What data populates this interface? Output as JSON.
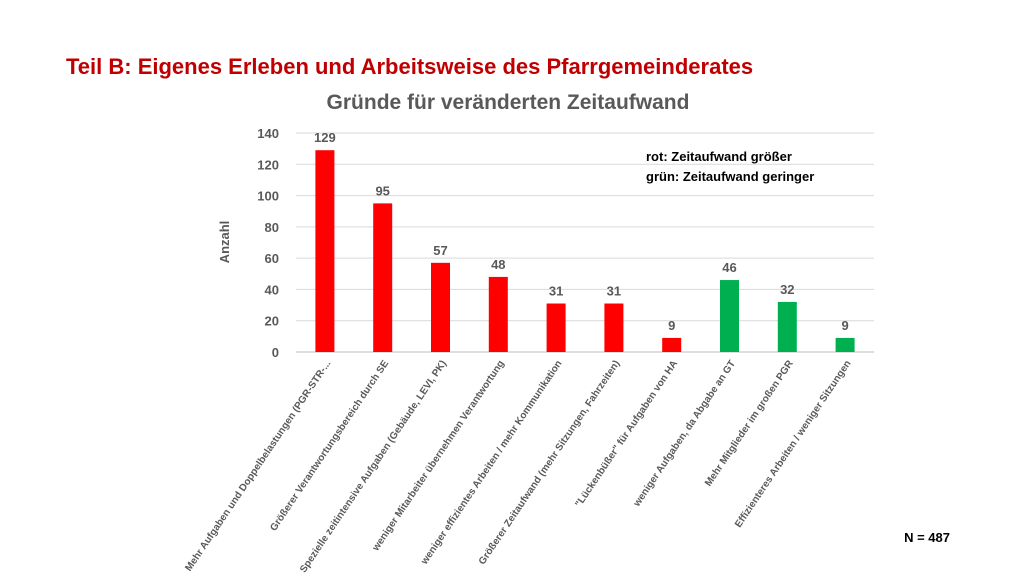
{
  "slide": {
    "title": "Teil B: Eigenes Erleben und Arbeitsweise des Pfarrgemeinderates",
    "footnote": "N = 487"
  },
  "colors": {
    "red": "#ff0000",
    "green": "#00b050",
    "title": "#c00000"
  },
  "chart_data": {
    "type": "bar",
    "title": "Gründe für veränderten Zeitaufwand",
    "ylabel": "Anzahl",
    "xlabel": "",
    "ylim": [
      0,
      140
    ],
    "yticks": [
      0,
      20,
      40,
      60,
      80,
      100,
      120,
      140
    ],
    "grid": true,
    "categories": [
      "Mehr Aufgaben und Doppelbelastungen (PGR-STR-...",
      "Größerer Verantwortungsbereich durch SE",
      "Spezielle zeitintensive Aufgaben (Gebäude, LEVI, PK)",
      "weniger Mitarbeiter übernehmen Verantwortung",
      "weniger effizientes Arbeiten / mehr Kommunikation",
      "Größerer Zeitaufwand (mehr Sitzungen, Fahrzeiten)",
      "\"Lückenbüßer\" für Aufgaben von HA",
      "weniger Aufgaben, da Abgabe an GT",
      "Mehr Mitglieder im großen PGR",
      "Effizienteres Arbeiten / weniger Sitzungen"
    ],
    "values": [
      129,
      95,
      57,
      48,
      31,
      31,
      9,
      46,
      32,
      9
    ],
    "bar_colors": [
      "red",
      "red",
      "red",
      "red",
      "red",
      "red",
      "red",
      "green",
      "green",
      "green"
    ],
    "annotations": [
      "rot: Zeitaufwand größer",
      "grün:  Zeitaufwand geringer"
    ]
  }
}
